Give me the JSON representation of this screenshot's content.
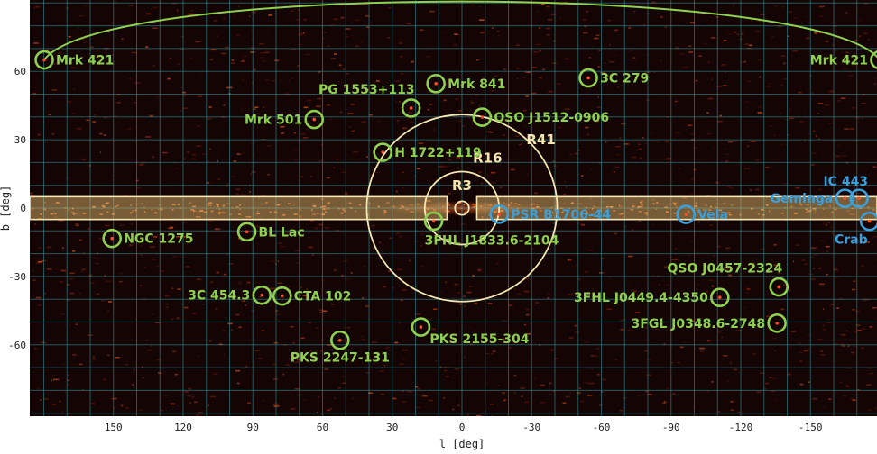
{
  "chart_data": {
    "type": "scatter",
    "projection": "plate-carree sky map (Galactic coordinates)",
    "xlabel": "l [deg]",
    "ylabel": "b [deg]",
    "xlim": [
      180,
      -180
    ],
    "ylim": [
      -90,
      90
    ],
    "xticks": [
      150,
      120,
      90,
      60,
      30,
      0,
      -30,
      -60,
      -90,
      -120,
      -150
    ],
    "yticks": [
      -60,
      -30,
      0,
      30,
      60
    ],
    "grid": true,
    "colors": {
      "background": "#140404",
      "grid": "#2f8f96",
      "extragalactic": "#8fd14f",
      "galactic": "#3aa0dc",
      "region": "#f6e6b0",
      "band_fill": "#f2c777"
    },
    "regions": [
      {
        "name": "R3",
        "radius_deg": 3
      },
      {
        "name": "R16",
        "radius_deg": 16
      },
      {
        "name": "R41",
        "radius_deg": 41
      },
      {
        "name": "galactic-plane-band",
        "b_halfwidth_deg": 5
      }
    ],
    "sources": [
      {
        "name": "Mrk 421",
        "l": 179.8,
        "b": 65.0,
        "class": "extragalactic",
        "label_side": "right"
      },
      {
        "name": "Mrk 421",
        "l": -179.8,
        "b": 65.0,
        "class": "extragalactic",
        "label_side": "left"
      },
      {
        "name": "Mrk 841",
        "l": 11.2,
        "b": 54.6,
        "class": "extragalactic",
        "label_side": "right"
      },
      {
        "name": "3C 279",
        "l": -54.4,
        "b": 57.1,
        "class": "extragalactic",
        "label_side": "right"
      },
      {
        "name": "PG 1553+113",
        "l": 21.9,
        "b": 43.9,
        "class": "extragalactic",
        "label_side": "above-left"
      },
      {
        "name": "QSO J1512-0906",
        "l": -8.7,
        "b": 39.9,
        "class": "extragalactic",
        "label_side": "right"
      },
      {
        "name": "Mrk 501",
        "l": 63.6,
        "b": 38.9,
        "class": "extragalactic",
        "label_side": "left"
      },
      {
        "name": "H 1722+119",
        "l": 34.1,
        "b": 24.5,
        "class": "extragalactic",
        "label_side": "right"
      },
      {
        "name": "3FHL J1833.6-2104",
        "l": 12.2,
        "b": -5.7,
        "class": "extragalactic",
        "label_side": "below"
      },
      {
        "name": "BL Lac",
        "l": 92.6,
        "b": -10.4,
        "class": "extragalactic",
        "label_side": "right"
      },
      {
        "name": "NGC 1275",
        "l": 150.6,
        "b": -13.3,
        "class": "extragalactic",
        "label_side": "right"
      },
      {
        "name": "3C 454.3",
        "l": 86.1,
        "b": -38.2,
        "class": "extragalactic",
        "label_side": "left"
      },
      {
        "name": "CTA 102",
        "l": 77.4,
        "b": -38.6,
        "class": "extragalactic",
        "label_side": "right"
      },
      {
        "name": "PKS 2155-304",
        "l": 17.7,
        "b": -52.2,
        "class": "extragalactic",
        "label_side": "below-right"
      },
      {
        "name": "PKS 2247-131",
        "l": 52.5,
        "b": -58.0,
        "class": "extragalactic",
        "label_side": "below"
      },
      {
        "name": "QSO J0457-2324",
        "l": -136.4,
        "b": -34.6,
        "class": "extragalactic",
        "label_side": "above-left"
      },
      {
        "name": "3FHL J0449.4-4350",
        "l": -111.0,
        "b": -39.2,
        "class": "extragalactic",
        "label_side": "left"
      },
      {
        "name": "3FGL J0348.6-2748",
        "l": -135.6,
        "b": -50.5,
        "class": "extragalactic",
        "label_side": "left"
      },
      {
        "name": "PSR B1706-44",
        "l": -16.0,
        "b": -2.7,
        "class": "galactic",
        "label_side": "right"
      },
      {
        "name": "Vela",
        "l": -96.4,
        "b": -2.8,
        "class": "galactic",
        "label_side": "right"
      },
      {
        "name": "Geminga",
        "l": -164.8,
        "b": 4.3,
        "class": "galactic",
        "label_side": "left"
      },
      {
        "name": "IC 443",
        "l": -170.9,
        "b": 4.3,
        "class": "galactic",
        "label_side": "above"
      },
      {
        "name": "Crab",
        "l": -175.4,
        "b": -5.8,
        "class": "galactic",
        "label_side": "below"
      }
    ]
  }
}
